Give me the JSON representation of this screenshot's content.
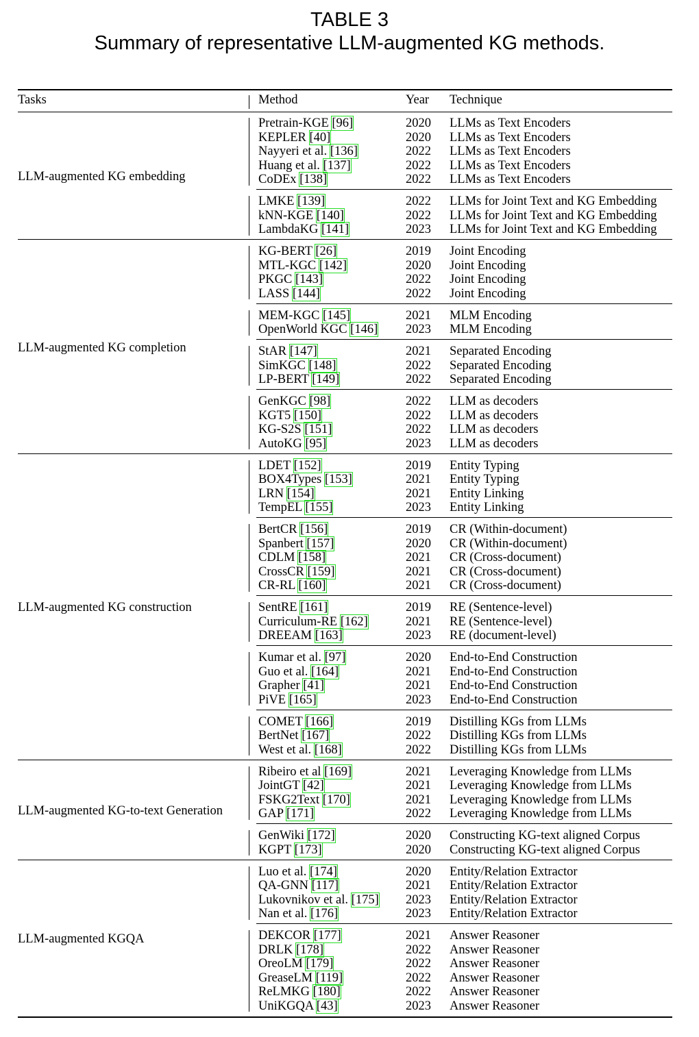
{
  "caption": {
    "number": "TABLE 3",
    "title": "Summary of representative LLM-augmented KG methods."
  },
  "headers": {
    "tasks": "Tasks",
    "method": "Method",
    "year": "Year",
    "technique": "Technique"
  },
  "tasks": [
    {
      "name": "LLM-augmented KG embedding",
      "groups": [
        [
          {
            "name": "Pretrain-KGE",
            "ref": "[96]",
            "year": "2020",
            "technique": "LLMs as Text Encoders"
          },
          {
            "name": "KEPLER",
            "ref": "[40]",
            "year": "2020",
            "technique": "LLMs as Text Encoders"
          },
          {
            "name": "Nayyeri et al.",
            "ref": "[136]",
            "year": "2022",
            "technique": "LLMs as Text Encoders"
          },
          {
            "name": "Huang et al.",
            "ref": "[137]",
            "year": "2022",
            "technique": "LLMs as Text Encoders"
          },
          {
            "name": "CoDEx",
            "ref": "[138]",
            "year": "2022",
            "technique": "LLMs as Text Encoders"
          }
        ],
        [
          {
            "name": "LMKE",
            "ref": "[139]",
            "year": "2022",
            "technique": "LLMs for Joint Text and KG Embedding"
          },
          {
            "name": "kNN-KGE",
            "ref": "[140]",
            "year": "2022",
            "technique": "LLMs for Joint Text and KG Embedding"
          },
          {
            "name": "LambdaKG",
            "ref": "[141]",
            "year": "2023",
            "technique": "LLMs for Joint Text and KG Embedding"
          }
        ]
      ]
    },
    {
      "name": "LLM-augmented KG completion",
      "groups": [
        [
          {
            "name": "KG-BERT",
            "ref": "[26]",
            "year": "2019",
            "technique": "Joint Encoding"
          },
          {
            "name": "MTL-KGC",
            "ref": "[142]",
            "year": "2020",
            "technique": "Joint Encoding"
          },
          {
            "name": "PKGC",
            "ref": "[143]",
            "year": "2022",
            "technique": "Joint Encoding"
          },
          {
            "name": "LASS",
            "ref": "[144]",
            "year": "2022",
            "technique": "Joint Encoding"
          }
        ],
        [
          {
            "name": "MEM-KGC",
            "ref": "[145]",
            "year": "2021",
            "technique": "MLM Encoding"
          },
          {
            "name": "OpenWorld KGC",
            "ref": "[146]",
            "year": "2023",
            "technique": "MLM Encoding"
          }
        ],
        [
          {
            "name": "StAR",
            "ref": "[147]",
            "year": "2021",
            "technique": "Separated Encoding"
          },
          {
            "name": "SimKGC",
            "ref": "[148]",
            "year": "2022",
            "technique": "Separated Encoding"
          },
          {
            "name": "LP-BERT",
            "ref": "[149]",
            "year": "2022",
            "technique": "Separated Encoding"
          }
        ],
        [
          {
            "name": "GenKGC",
            "ref": "[98]",
            "year": "2022",
            "technique": "LLM as decoders"
          },
          {
            "name": "KGT5",
            "ref": "[150]",
            "year": "2022",
            "technique": "LLM as decoders"
          },
          {
            "name": "KG-S2S",
            "ref": "[151]",
            "year": "2022",
            "technique": "LLM as decoders"
          },
          {
            "name": "AutoKG",
            "ref": "[95]",
            "year": "2023",
            "technique": "LLM as decoders"
          }
        ]
      ]
    },
    {
      "name": "LLM-augmented KG construction",
      "groups": [
        [
          {
            "name": "LDET",
            "ref": "[152]",
            "year": "2019",
            "technique": "Entity Typing"
          },
          {
            "name": "BOX4Types",
            "ref": "[153]",
            "year": "2021",
            "technique": "Entity Typing"
          },
          {
            "name": "LRN",
            "ref": "[154]",
            "year": "2021",
            "technique": "Entity Linking"
          },
          {
            "name": "TempEL",
            "ref": "[155]",
            "year": "2023",
            "technique": "Entity Linking"
          }
        ],
        [
          {
            "name": "BertCR",
            "ref": "[156]",
            "year": "2019",
            "technique": "CR (Within-document)"
          },
          {
            "name": "Spanbert",
            "ref": "[157]",
            "year": "2020",
            "technique": "CR (Within-document)"
          },
          {
            "name": "CDLM",
            "ref": "[158]",
            "year": "2021",
            "technique": "CR (Cross-document)"
          },
          {
            "name": "CrossCR",
            "ref": "[159]",
            "year": "2021",
            "technique": "CR (Cross-document)"
          },
          {
            "name": "CR-RL",
            "ref": "[160]",
            "year": "2021",
            "technique": "CR (Cross-document)"
          }
        ],
        [
          {
            "name": "SentRE",
            "ref": "[161]",
            "year": "2019",
            "technique": "RE (Sentence-level)"
          },
          {
            "name": "Curriculum-RE",
            "ref": "[162]",
            "year": "2021",
            "technique": "RE (Sentence-level)"
          },
          {
            "name": "DREEAM",
            "ref": "[163]",
            "year": "2023",
            "technique": "RE (document-level)"
          }
        ],
        [
          {
            "name": "Kumar et al.",
            "ref": "[97]",
            "year": "2020",
            "technique": "End-to-End Construction"
          },
          {
            "name": "Guo et al.",
            "ref": "[164]",
            "year": "2021",
            "technique": "End-to-End Construction"
          },
          {
            "name": "Grapher",
            "ref": "[41]",
            "year": "2021",
            "technique": "End-to-End Construction"
          },
          {
            "name": "PiVE",
            "ref": "[165]",
            "year": "2023",
            "technique": "End-to-End Construction"
          }
        ],
        [
          {
            "name": "COMET",
            "ref": "[166]",
            "year": "2019",
            "technique": "Distilling KGs from LLMs"
          },
          {
            "name": "BertNet",
            "ref": "[167]",
            "year": "2022",
            "technique": "Distilling KGs from LLMs"
          },
          {
            "name": "West et al.",
            "ref": "[168]",
            "year": "2022",
            "technique": "Distilling KGs from LLMs"
          }
        ]
      ]
    },
    {
      "name": "LLM-augmented KG-to-text Generation",
      "groups": [
        [
          {
            "name": "Ribeiro et al",
            "ref": "[169]",
            "year": "2021",
            "technique": "Leveraging Knowledge from LLMs"
          },
          {
            "name": "JointGT",
            "ref": "[42]",
            "year": "2021",
            "technique": "Leveraging Knowledge from LLMs"
          },
          {
            "name": "FSKG2Text",
            "ref": "[170]",
            "year": "2021",
            "technique": "Leveraging Knowledge from LLMs"
          },
          {
            "name": "GAP",
            "ref": "[171]",
            "year": "2022",
            "technique": "Leveraging Knowledge from LLMs"
          }
        ],
        [
          {
            "name": "GenWiki",
            "ref": "[172]",
            "year": "2020",
            "technique": "Constructing KG-text aligned Corpus"
          },
          {
            "name": "KGPT",
            "ref": "[173]",
            "year": "2020",
            "technique": "Constructing KG-text aligned Corpus"
          }
        ]
      ]
    },
    {
      "name": "LLM-augmented KGQA",
      "groups": [
        [
          {
            "name": "Luo et al.",
            "ref": "[174]",
            "year": "2020",
            "technique": "Entity/Relation Extractor"
          },
          {
            "name": "QA-GNN",
            "ref": "[117]",
            "year": "2021",
            "technique": "Entity/Relation Extractor"
          },
          {
            "name": "Lukovnikov et al.",
            "ref": "[175]",
            "year": "2023",
            "technique": "Entity/Relation Extractor"
          },
          {
            "name": "Nan et al.",
            "ref": "[176]",
            "year": "2023",
            "technique": "Entity/Relation Extractor"
          }
        ],
        [
          {
            "name": "DEKCOR",
            "ref": "[177]",
            "year": "2021",
            "technique": "Answer Reasoner"
          },
          {
            "name": "DRLK",
            "ref": "[178]",
            "year": "2022",
            "technique": "Answer Reasoner"
          },
          {
            "name": "OreoLM",
            "ref": "[179]",
            "year": "2022",
            "technique": "Answer Reasoner"
          },
          {
            "name": "GreaseLM",
            "ref": "[119]",
            "year": "2022",
            "technique": "Answer Reasoner"
          },
          {
            "name": "ReLMKG",
            "ref": "[180]",
            "year": "2022",
            "technique": "Answer Reasoner"
          },
          {
            "name": "UniKGQA",
            "ref": "[43]",
            "year": "2023",
            "technique": "Answer Reasoner"
          }
        ]
      ]
    }
  ]
}
